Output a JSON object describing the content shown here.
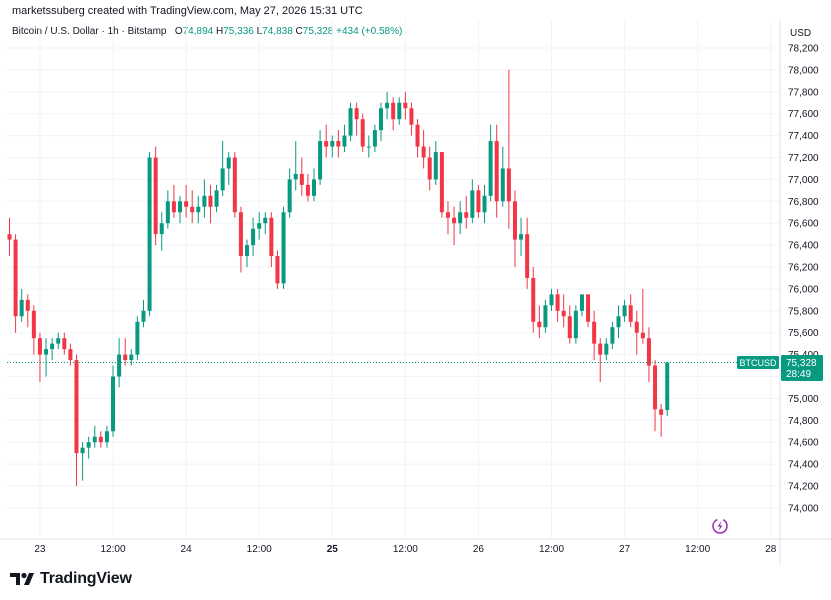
{
  "header": {
    "credit": "marketssuberg created with TradingView.com, May 27, 2026 15:31 UTC"
  },
  "legend": {
    "symbol": "Bitcoin / U.S. Dollar · 1h · Bitstamp",
    "o_label": "O",
    "o_value": "74,894",
    "h_label": "H",
    "h_value": "75,336",
    "l_label": "L",
    "l_value": "74,838",
    "c_label": "C",
    "c_value": "75,328",
    "change": "+434 (+0.58%)"
  },
  "footer": {
    "logo_text": "TradingView",
    "logo_icon": "tradingview-logo-icon"
  },
  "price_tag": {
    "symbol": "BTCUSD",
    "price": "75,328",
    "countdown": "28:49"
  },
  "colors": {
    "up": "#089981",
    "down": "#f23645",
    "grid": "#f0f3fa",
    "axis_text": "#131722",
    "last_price_line": "#089981",
    "badge_purple": "#9c27b0"
  },
  "chart_data": {
    "type": "candlestick",
    "title": "",
    "currency_label": "USD",
    "symbol": "BTCUSD",
    "timeframe": "1h",
    "ylim": [
      73800,
      78300
    ],
    "y_ticks": [
      74000,
      74200,
      74400,
      74600,
      74800,
      75000,
      75200,
      75400,
      75600,
      75800,
      76000,
      76200,
      76400,
      76600,
      76800,
      77000,
      77200,
      77400,
      77600,
      77800,
      78000,
      78200
    ],
    "y_tick_labels": [
      "74,000",
      "74,200",
      "74,400",
      "74,600",
      "74,800",
      "75,000",
      "75,200",
      "75,400",
      "75,600",
      "75,800",
      "76,000",
      "76,200",
      "76,400",
      "76,600",
      "76,800",
      "77,000",
      "77,200",
      "77,400",
      "77,600",
      "77,800",
      "78,000",
      "78,200"
    ],
    "x_ticks": [
      {
        "label": "23",
        "index": 5,
        "bold": false
      },
      {
        "label": "12:00",
        "index": 17,
        "bold": false
      },
      {
        "label": "24",
        "index": 29,
        "bold": false
      },
      {
        "label": "12:00",
        "index": 41,
        "bold": false
      },
      {
        "label": "25",
        "index": 53,
        "bold": true
      },
      {
        "label": "12:00",
        "index": 65,
        "bold": false
      },
      {
        "label": "26",
        "index": 77,
        "bold": false
      },
      {
        "label": "12:00",
        "index": 89,
        "bold": false
      },
      {
        "label": "27",
        "index": 101,
        "bold": false
      },
      {
        "label": "12:00",
        "index": 113,
        "bold": false
      },
      {
        "label": "28",
        "index": 125,
        "bold": false
      }
    ],
    "last_price": 75328,
    "grid": true,
    "candles": [
      [
        76500,
        76650,
        76300,
        76450
      ],
      [
        76450,
        76500,
        75600,
        75750
      ],
      [
        75750,
        76000,
        75700,
        75900
      ],
      [
        75900,
        75950,
        75650,
        75800
      ],
      [
        75800,
        75850,
        75400,
        75550
      ],
      [
        75550,
        75600,
        75150,
        75400
      ],
      [
        75400,
        75550,
        75200,
        75450
      ],
      [
        75450,
        75550,
        75350,
        75500
      ],
      [
        75500,
        75600,
        75450,
        75550
      ],
      [
        75550,
        75600,
        75400,
        75450
      ],
      [
        75450,
        75500,
        75300,
        75350
      ],
      [
        75350,
        75400,
        74200,
        74500
      ],
      [
        74500,
        74600,
        74250,
        74550
      ],
      [
        74550,
        74650,
        74450,
        74600
      ],
      [
        74600,
        74750,
        74550,
        74650
      ],
      [
        74650,
        74700,
        74550,
        74600
      ],
      [
        74600,
        74750,
        74550,
        74700
      ],
      [
        74700,
        75300,
        74650,
        75200
      ],
      [
        75200,
        75550,
        75100,
        75400
      ],
      [
        75400,
        75550,
        75300,
        75350
      ],
      [
        75350,
        75450,
        75300,
        75400
      ],
      [
        75400,
        75750,
        75350,
        75700
      ],
      [
        75700,
        75900,
        75650,
        75800
      ],
      [
        75800,
        77250,
        75750,
        77200
      ],
      [
        77200,
        77300,
        76400,
        76500
      ],
      [
        76500,
        76700,
        76350,
        76600
      ],
      [
        76600,
        76900,
        76550,
        76800
      ],
      [
        76800,
        76950,
        76650,
        76700
      ],
      [
        76700,
        76850,
        76600,
        76800
      ],
      [
        76800,
        76950,
        76650,
        76750
      ],
      [
        76750,
        76900,
        76600,
        76700
      ],
      [
        76700,
        76850,
        76600,
        76750
      ],
      [
        76750,
        77000,
        76650,
        76850
      ],
      [
        76850,
        76950,
        76600,
        76750
      ],
      [
        76750,
        76950,
        76700,
        76900
      ],
      [
        76900,
        77350,
        76850,
        77100
      ],
      [
        77100,
        77250,
        76950,
        77200
      ],
      [
        77200,
        77250,
        76650,
        76700
      ],
      [
        76700,
        76750,
        76150,
        76300
      ],
      [
        76300,
        76450,
        76200,
        76400
      ],
      [
        76400,
        76650,
        76300,
        76550
      ],
      [
        76550,
        76700,
        76450,
        76600
      ],
      [
        76600,
        76700,
        76500,
        76650
      ],
      [
        76650,
        76700,
        76200,
        76300
      ],
      [
        76300,
        76350,
        76000,
        76050
      ],
      [
        76050,
        76750,
        76000,
        76700
      ],
      [
        76700,
        77100,
        76650,
        77000
      ],
      [
        77000,
        77350,
        76900,
        77050
      ],
      [
        77050,
        77200,
        76850,
        76950
      ],
      [
        76950,
        77050,
        76800,
        76850
      ],
      [
        76850,
        77100,
        76800,
        77000
      ],
      [
        77000,
        77450,
        76950,
        77350
      ],
      [
        77350,
        77500,
        77200,
        77300
      ],
      [
        77300,
        77400,
        77200,
        77350
      ],
      [
        77350,
        77450,
        77200,
        77300
      ],
      [
        77300,
        77500,
        77250,
        77400
      ],
      [
        77400,
        77700,
        77350,
        77650
      ],
      [
        77650,
        77700,
        77400,
        77550
      ],
      [
        77550,
        77600,
        77250,
        77300
      ],
      [
        77300,
        77400,
        77200,
        77300
      ],
      [
        77300,
        77500,
        77250,
        77450
      ],
      [
        77450,
        77700,
        77350,
        77650
      ],
      [
        77650,
        77800,
        77550,
        77700
      ],
      [
        77700,
        77750,
        77450,
        77550
      ],
      [
        77550,
        77750,
        77500,
        77700
      ],
      [
        77700,
        77800,
        77550,
        77650
      ],
      [
        77650,
        77700,
        77400,
        77500
      ],
      [
        77500,
        77550,
        77200,
        77300
      ],
      [
        77300,
        77450,
        77100,
        77200
      ],
      [
        77200,
        77300,
        76900,
        77000
      ],
      [
        77000,
        77350,
        76950,
        77250
      ],
      [
        77250,
        77250,
        76650,
        76700
      ],
      [
        76700,
        76800,
        76500,
        76650
      ],
      [
        76650,
        76750,
        76400,
        76600
      ],
      [
        76600,
        76800,
        76500,
        76700
      ],
      [
        76700,
        76850,
        76550,
        76650
      ],
      [
        76650,
        77000,
        76600,
        76900
      ],
      [
        76900,
        76950,
        76650,
        76700
      ],
      [
        76700,
        76950,
        76600,
        76850
      ],
      [
        76850,
        77500,
        76800,
        77350
      ],
      [
        77350,
        77500,
        76650,
        76800
      ],
      [
        76800,
        77300,
        76750,
        77100
      ],
      [
        77100,
        78000,
        76550,
        76800
      ],
      [
        76800,
        76900,
        76200,
        76450
      ],
      [
        76450,
        76650,
        76300,
        76500
      ],
      [
        76500,
        76650,
        76000,
        76100
      ],
      [
        76100,
        76200,
        75600,
        75700
      ],
      [
        75700,
        75850,
        75550,
        75650
      ],
      [
        75650,
        75900,
        75600,
        75850
      ],
      [
        75850,
        76000,
        75800,
        75950
      ],
      [
        75950,
        76000,
        75700,
        75800
      ],
      [
        75800,
        75950,
        75650,
        75750
      ],
      [
        75750,
        75850,
        75500,
        75550
      ],
      [
        75550,
        75850,
        75500,
        75800
      ],
      [
        75800,
        75950,
        75750,
        75950
      ],
      [
        75950,
        75950,
        75650,
        75700
      ],
      [
        75700,
        75800,
        75350,
        75500
      ],
      [
        75500,
        75550,
        75150,
        75400
      ],
      [
        75400,
        75550,
        75350,
        75500
      ],
      [
        75500,
        75700,
        75450,
        75650
      ],
      [
        75650,
        75850,
        75550,
        75750
      ],
      [
        75750,
        75900,
        75700,
        75850
      ],
      [
        75850,
        75950,
        75650,
        75700
      ],
      [
        75700,
        75800,
        75400,
        75600
      ],
      [
        75600,
        76000,
        75500,
        75550
      ],
      [
        75550,
        75650,
        75150,
        75300
      ],
      [
        75300,
        75350,
        74700,
        74900
      ],
      [
        74900,
        74950,
        74650,
        74850
      ],
      [
        74894,
        75336,
        74838,
        75328
      ]
    ]
  }
}
